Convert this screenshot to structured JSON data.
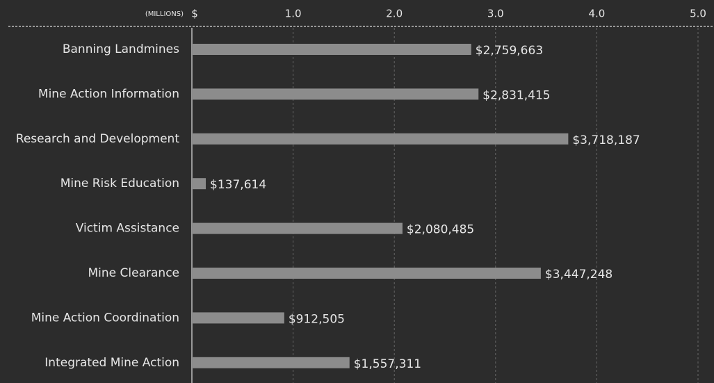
{
  "chart_data": {
    "type": "hbar",
    "x_axis_label": "(MILLIONS)",
    "categories": [
      "Banning Landmines",
      "Mine Action Information",
      "Research and Development",
      "Mine Risk Education",
      "Victim Assistance",
      "Mine Clearance",
      "Mine Action Coordination",
      "Integrated Mine Action"
    ],
    "values": [
      2.759663,
      2.831415,
      3.718187,
      0.137614,
      2.080485,
      3.447248,
      0.912505,
      1.557311
    ],
    "value_labels": [
      "$2,759,663",
      "$2,831,415",
      "$3,718,187",
      "$137,614",
      "$2,080,485",
      "$3,447,248",
      "$912,505",
      "$1,557,311"
    ],
    "color": "#8c8c8c",
    "xlim": [
      0,
      5
    ],
    "xticks": [
      {
        "value": 0,
        "label": "$"
      },
      {
        "value": 1,
        "label": "1.0"
      },
      {
        "value": 2,
        "label": "2.0"
      },
      {
        "value": 3,
        "label": "3.0"
      },
      {
        "value": 4,
        "label": "4.0"
      },
      {
        "value": 5,
        "label": "5.0"
      }
    ],
    "grid": true
  }
}
